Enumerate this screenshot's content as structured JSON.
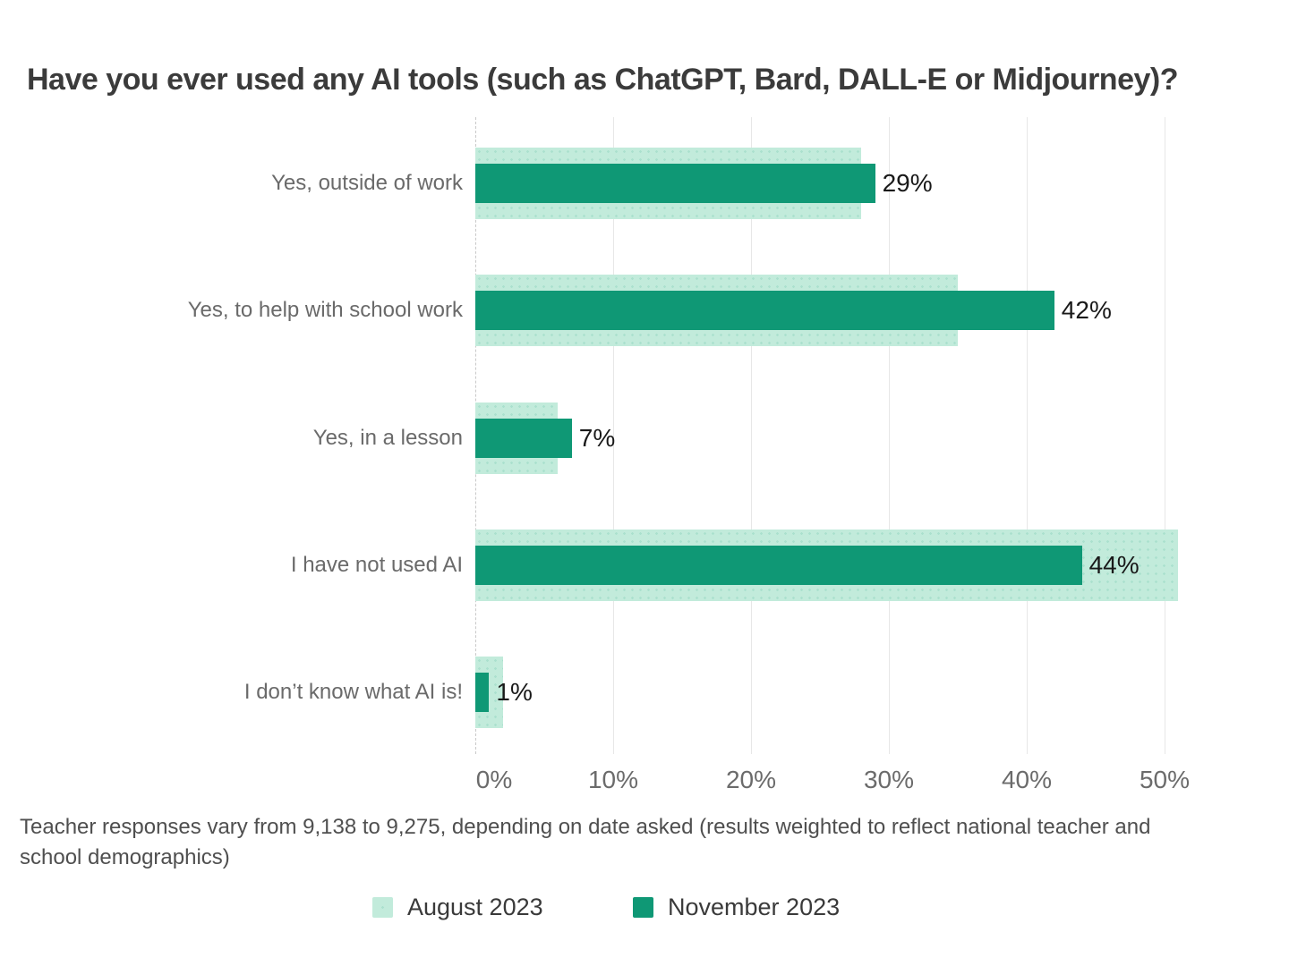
{
  "chart_data": {
    "type": "bar",
    "orientation": "horizontal",
    "title": "Have you ever used any AI tools (such as ChatGPT, Bard, DALL-E or Midjourney)?",
    "categories": [
      "Yes, outside of work",
      "Yes, to help with school work",
      "Yes, in a lesson",
      "I have not used AI",
      "I don’t know what AI is!"
    ],
    "series": [
      {
        "name": "August 2023",
        "color": "#c2ebdb",
        "values": [
          28,
          35,
          6,
          51,
          2
        ],
        "data_labels": [
          "",
          "",
          "",
          "",
          ""
        ]
      },
      {
        "name": "November 2023",
        "color": "#0f9875",
        "values": [
          29,
          42,
          7,
          44,
          1
        ],
        "data_labels": [
          "29%",
          "42%",
          "7%",
          "44%",
          "1%"
        ]
      }
    ],
    "x_axis": {
      "min": 0,
      "max": 50,
      "tick_step": 10,
      "tick_labels": [
        "0%",
        "10%",
        "20%",
        "30%",
        "40%",
        "50%"
      ],
      "grid": true,
      "zero_line_style": "dashed"
    },
    "legend": {
      "position": "bottom",
      "entries": [
        {
          "label": "August 2023",
          "color": "#c2ebdb"
        },
        {
          "label": "November 2023",
          "color": "#0f9875"
        }
      ]
    },
    "footnote": "Teacher responses vary from 9,138 to 9,275, depending on date asked (results weighted to reflect national teacher and school demographics)"
  }
}
